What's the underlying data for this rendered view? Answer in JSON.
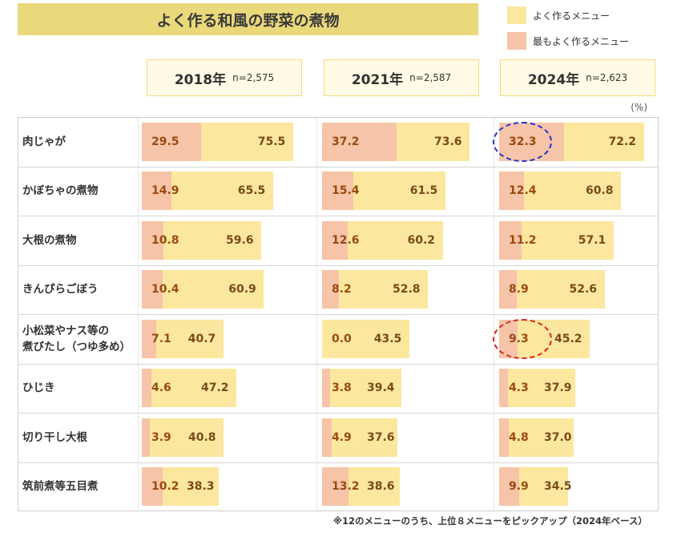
{
  "title": "よく作る和風の野菜の煮物",
  "legend": {
    "often": {
      "label": "よく作るメニュー",
      "color": "#fce79e"
    },
    "most": {
      "label": "最もよく作るメニュー",
      "color": "#f6c4a8"
    }
  },
  "unit": "(%)",
  "footnote": "※12のメニューのうち、上位８メニューをピックアップ（2024年ベース）",
  "chart_data": {
    "type": "bar",
    "orientation": "horizontal",
    "categories": [
      "肉じゃが",
      "かぼちゃの煮物",
      "大根の煮物",
      "きんぴらごぼう",
      "小松菜やナス等の煮びたし（つゆ多め）",
      "ひじき",
      "切り干し大根",
      "筑前煮等五目煮"
    ],
    "category_lines": [
      [
        "肉じゃが"
      ],
      [
        "かぼちゃの煮物"
      ],
      [
        "大根の煮物"
      ],
      [
        "きんぴらごぼう"
      ],
      [
        "小松菜やナス等の",
        "煮びたし（つゆ多め）"
      ],
      [
        "ひじき"
      ],
      [
        "切り干し大根"
      ],
      [
        "筑前煮等五目煮"
      ]
    ],
    "panels": [
      {
        "year": "2018年",
        "n": "n=2,575",
        "often": [
          75.5,
          65.5,
          59.6,
          60.9,
          40.7,
          47.2,
          40.8,
          38.3
        ],
        "most": [
          29.5,
          14.9,
          10.8,
          10.4,
          7.1,
          4.6,
          3.9,
          10.2
        ]
      },
      {
        "year": "2021年",
        "n": "n=2,587",
        "often": [
          73.6,
          61.5,
          60.2,
          52.8,
          43.5,
          39.4,
          37.6,
          38.6
        ],
        "most": [
          37.2,
          15.4,
          12.6,
          8.2,
          0.0,
          3.8,
          4.9,
          13.2
        ]
      },
      {
        "year": "2024年",
        "n": "n=2,623",
        "often": [
          72.2,
          60.8,
          57.1,
          52.6,
          45.2,
          37.9,
          37.0,
          34.5
        ],
        "most": [
          32.3,
          12.4,
          11.2,
          8.9,
          9.3,
          4.3,
          4.8,
          9.9
        ]
      }
    ],
    "series": [
      {
        "name": "よく作るメニュー"
      },
      {
        "name": "最もよく作るメニュー"
      }
    ],
    "highlights": [
      {
        "panel": 2,
        "category": 0,
        "series": "most",
        "color": "#2233cc"
      },
      {
        "panel": 2,
        "category": 4,
        "series": "most",
        "color": "#dd2222"
      }
    ]
  }
}
